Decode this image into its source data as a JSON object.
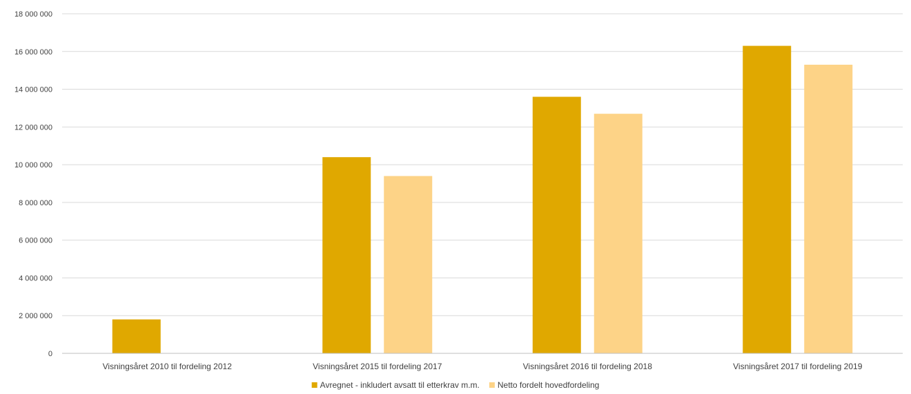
{
  "chart_data": {
    "type": "bar",
    "categories": [
      "Visningsåret 2010 til fordeling 2012",
      "Visningsåret 2015 til fordeling 2017",
      "Visningsåret 2016 til fordeling 2018",
      "Visningsåret 2017 til fordeling 2019"
    ],
    "series": [
      {
        "name": "Avregnet - inkludert avsatt til etterkrav m.m.",
        "color": "#e0a800",
        "values": [
          1800000,
          10400000,
          13600000,
          16300000
        ]
      },
      {
        "name": "Netto fordelt hovedfordeling",
        "color": "#fdd387",
        "values": [
          null,
          9400000,
          12700000,
          15300000
        ]
      }
    ],
    "ylim": [
      0,
      18000000
    ],
    "yticks": [
      0,
      2000000,
      4000000,
      6000000,
      8000000,
      10000000,
      12000000,
      14000000,
      16000000,
      18000000
    ],
    "ytick_labels": [
      "0",
      "2 000 000",
      "4 000 000",
      "6 000 000",
      "8 000 000",
      "10 000 000",
      "12 000 000",
      "14 000 000",
      "16 000 000",
      "18 000 000"
    ],
    "grid": true,
    "legend": "bottom-center"
  }
}
